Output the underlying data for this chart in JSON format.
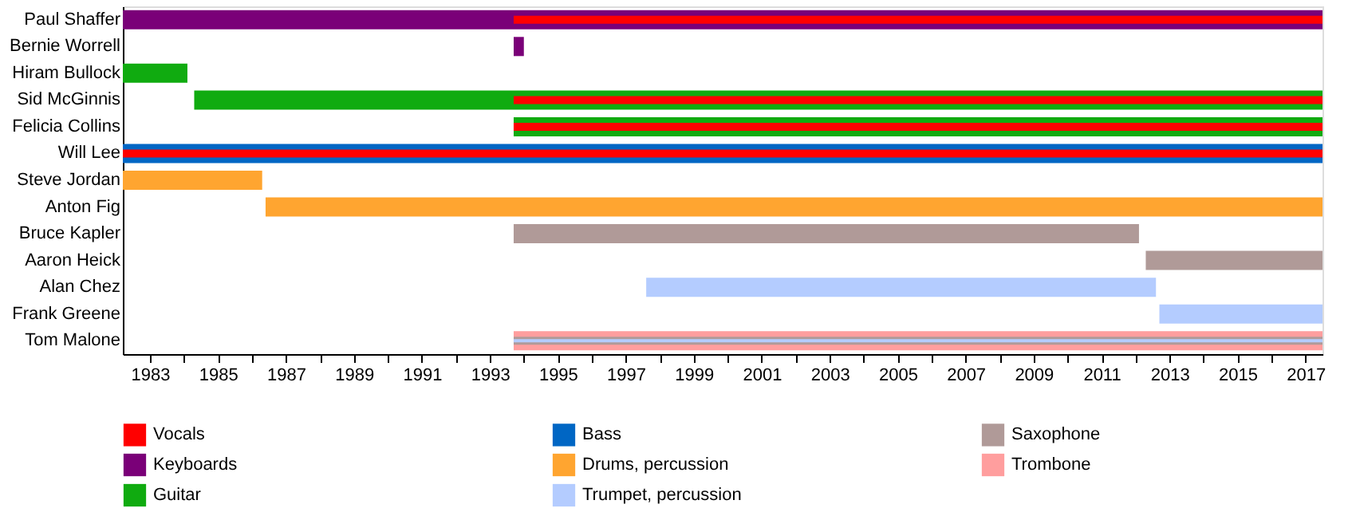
{
  "chart_data": {
    "type": "bar",
    "orientation": "horizontal",
    "categories": [
      "Paul Shaffer",
      "Bernie Worrell",
      "Hiram Bullock",
      "Sid McGinnis",
      "Felicia Collins",
      "Will Lee",
      "Steve Jordan",
      "Anton Fig",
      "Bruce Kapler",
      "Aaron Heick",
      "Alan Chez",
      "Frank Greene",
      "Tom Malone"
    ],
    "series": [
      {
        "name": "Vocals",
        "color": "#ff0000",
        "base": [
          1993.7,
          null,
          null,
          1993.7,
          1993.7,
          1982.2,
          null,
          null,
          null,
          null,
          null,
          null,
          null
        ],
        "values": [
          23.8,
          null,
          null,
          23.8,
          23.8,
          35.3,
          null,
          null,
          null,
          null,
          null,
          null,
          null
        ]
      },
      {
        "name": "Keyboards",
        "color": "#7a0078",
        "base": [
          1982.2,
          1993.7,
          null,
          null,
          null,
          null,
          null,
          null,
          null,
          null,
          null,
          null,
          null
        ],
        "values": [
          35.3,
          0.3,
          null,
          null,
          null,
          null,
          null,
          null,
          null,
          null,
          null,
          null,
          null
        ]
      },
      {
        "name": "Guitar",
        "color": "#10ab10",
        "base": [
          null,
          null,
          1982.2,
          1984.3,
          1993.7,
          null,
          null,
          null,
          null,
          null,
          null,
          null,
          null
        ],
        "values": [
          null,
          null,
          1.9,
          33.2,
          23.8,
          null,
          null,
          null,
          null,
          null,
          null,
          null,
          null
        ]
      },
      {
        "name": "Bass",
        "color": "#0066c4",
        "base": [
          null,
          null,
          null,
          null,
          null,
          1982.2,
          null,
          null,
          null,
          null,
          null,
          null,
          null
        ],
        "values": [
          null,
          null,
          null,
          null,
          null,
          35.3,
          null,
          null,
          null,
          null,
          null,
          null,
          null
        ]
      },
      {
        "name": "Drums, percussion",
        "color": "#ffa530",
        "base": [
          null,
          null,
          null,
          null,
          null,
          null,
          1982.2,
          1986.4,
          null,
          null,
          null,
          null,
          null
        ],
        "values": [
          null,
          null,
          null,
          null,
          null,
          null,
          4.1,
          31.1,
          null,
          null,
          null,
          null,
          null
        ]
      },
      {
        "name": "Trumpet, percussion",
        "color": "#b4ccff",
        "base": [
          null,
          null,
          null,
          null,
          null,
          null,
          null,
          null,
          null,
          null,
          1997.6,
          2012.7,
          1993.7
        ],
        "values": [
          null,
          null,
          null,
          null,
          null,
          null,
          null,
          null,
          null,
          null,
          15.0,
          4.8,
          23.8
        ]
      },
      {
        "name": "Saxophone",
        "color": "#b09a98",
        "base": [
          null,
          null,
          null,
          null,
          null,
          null,
          null,
          null,
          1993.7,
          2012.3,
          null,
          null,
          1993.7
        ],
        "values": [
          null,
          null,
          null,
          null,
          null,
          null,
          null,
          null,
          18.4,
          5.2,
          null,
          null,
          23.8
        ]
      },
      {
        "name": "Trombone",
        "color": "#ff9e9e",
        "base": [
          null,
          null,
          null,
          null,
          null,
          null,
          null,
          null,
          null,
          null,
          null,
          null,
          1993.7
        ],
        "values": [
          null,
          null,
          null,
          null,
          null,
          null,
          null,
          null,
          null,
          null,
          null,
          null,
          23.8
        ]
      }
    ],
    "xlim": [
      1982.2,
      2017.5
    ],
    "xticks": [
      1983,
      {
        "value": 1984,
        "label": null
      },
      1985,
      {
        "value": 1986,
        "label": null
      },
      1987,
      {
        "value": 1988,
        "label": null
      },
      1989,
      {
        "value": 1990,
        "label": null
      },
      1991,
      {
        "value": 1992,
        "label": null
      },
      1993,
      {
        "value": 1994,
        "label": null
      },
      1995,
      {
        "value": 1996,
        "label": null
      },
      1997,
      {
        "value": 1998,
        "label": null
      },
      1999,
      {
        "value": 2000,
        "label": null
      },
      2001,
      {
        "value": 2002,
        "label": null
      },
      2003,
      {
        "value": 2004,
        "label": null
      },
      2005,
      {
        "value": 2006,
        "label": null
      },
      2007,
      {
        "value": 2008,
        "label": null
      },
      2009,
      {
        "value": 2010,
        "label": null
      },
      2011,
      {
        "value": 2012,
        "label": null
      },
      2013,
      {
        "value": 2014,
        "label": null
      },
      2015,
      {
        "value": 2016,
        "label": null
      },
      2017
    ],
    "grid": false,
    "legend": "bottom"
  }
}
